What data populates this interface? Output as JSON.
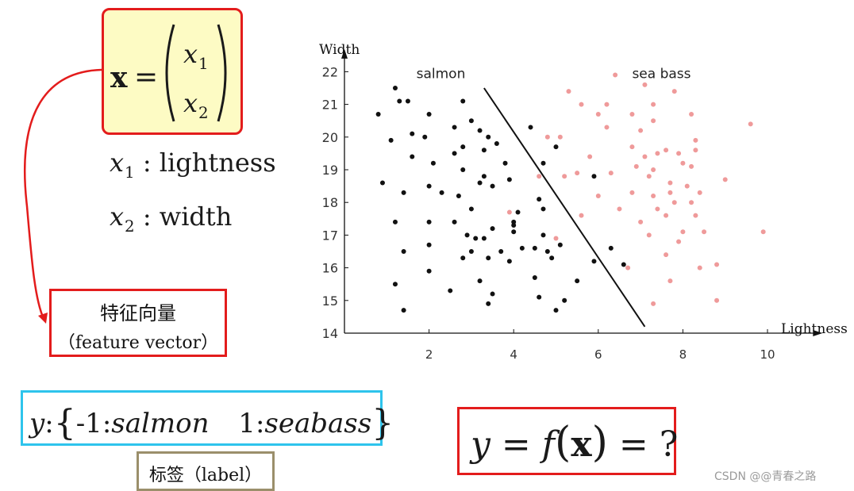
{
  "definition": {
    "vector_lhs": "x",
    "equals": "=",
    "component1_var": "x",
    "component1_sub": "1",
    "component2_var": "x",
    "component2_sub": "2",
    "feature1_var": "x",
    "feature1_sub": "1",
    "feature1_desc": ": lightness",
    "feature2_var": "x",
    "feature2_sub": "2",
    "feature2_desc": ": width"
  },
  "feature_vector_label": {
    "line1": "特征向量",
    "line2": "（feature vector）"
  },
  "label_definition": {
    "y": "y",
    "colon": ":",
    "open_brace": "{",
    "neg_one": "-1",
    "colon2": ":",
    "salmon": "salmon",
    "pos_one": "1",
    "colon3": ":",
    "seabass": "seabass",
    "close_brace": "}"
  },
  "tag_label": "标签（label）",
  "question": {
    "y": "y",
    "eq1": "=",
    "f": "f",
    "lparen": "(",
    "x": "x",
    "rparen": ")",
    "eq2": "=",
    "q": "?"
  },
  "watermark": "CSDN @@青春之路",
  "colors": {
    "red_border": "#e31c1c",
    "cyan_border": "#2ec4ec",
    "tan_border": "#9b8f6b",
    "yellow_fill": "#fdfbc4",
    "salmon_point": "#111111",
    "seabass_point": "#ef9a9a"
  },
  "chart_data": {
    "type": "scatter",
    "title": "",
    "xlabel": "Lightness",
    "ylabel": "Width",
    "xlim": [
      0,
      11
    ],
    "ylim": [
      14,
      22.4
    ],
    "xticks": [
      2,
      4,
      6,
      8,
      10
    ],
    "yticks": [
      14,
      15,
      16,
      17,
      18,
      19,
      20,
      21,
      22
    ],
    "grid": false,
    "annotations": [
      "salmon",
      "sea bass"
    ],
    "decision_boundary": [
      [
        3.3,
        21.5
      ],
      [
        7.1,
        14.2
      ]
    ],
    "series": [
      {
        "name": "salmon",
        "points": [
          [
            1.2,
            21.5
          ],
          [
            1.3,
            21.1
          ],
          [
            1.5,
            21.1
          ],
          [
            2.8,
            21.1
          ],
          [
            0.8,
            20.7
          ],
          [
            2.0,
            20.7
          ],
          [
            3.0,
            20.5
          ],
          [
            2.6,
            20.3
          ],
          [
            3.2,
            20.2
          ],
          [
            1.6,
            20.1
          ],
          [
            1.1,
            19.9
          ],
          [
            1.9,
            20.0
          ],
          [
            3.4,
            20.0
          ],
          [
            2.8,
            19.7
          ],
          [
            2.6,
            19.5
          ],
          [
            3.6,
            19.8
          ],
          [
            3.3,
            19.6
          ],
          [
            1.6,
            19.4
          ],
          [
            2.1,
            19.2
          ],
          [
            2.8,
            19.0
          ],
          [
            3.3,
            18.8
          ],
          [
            3.8,
            19.2
          ],
          [
            3.2,
            18.6
          ],
          [
            2.0,
            18.5
          ],
          [
            1.4,
            18.3
          ],
          [
            2.3,
            18.3
          ],
          [
            3.5,
            18.5
          ],
          [
            3.9,
            18.7
          ],
          [
            2.7,
            18.2
          ],
          [
            0.9,
            18.6
          ],
          [
            3.0,
            17.8
          ],
          [
            4.1,
            17.7
          ],
          [
            4.0,
            17.4
          ],
          [
            1.2,
            17.4
          ],
          [
            2.0,
            17.4
          ],
          [
            2.6,
            17.4
          ],
          [
            3.5,
            17.2
          ],
          [
            4.0,
            17.3
          ],
          [
            2.9,
            17.0
          ],
          [
            3.1,
            16.9
          ],
          [
            3.3,
            16.9
          ],
          [
            4.2,
            16.6
          ],
          [
            4.0,
            17.1
          ],
          [
            2.0,
            16.7
          ],
          [
            3.4,
            16.3
          ],
          [
            3.7,
            16.5
          ],
          [
            3.0,
            16.5
          ],
          [
            2.8,
            16.3
          ],
          [
            3.9,
            16.2
          ],
          [
            4.5,
            16.6
          ],
          [
            1.4,
            16.5
          ],
          [
            2.0,
            15.9
          ],
          [
            3.2,
            15.6
          ],
          [
            4.5,
            15.7
          ],
          [
            1.2,
            15.5
          ],
          [
            2.5,
            15.3
          ],
          [
            3.5,
            15.2
          ],
          [
            3.4,
            14.9
          ],
          [
            4.6,
            15.1
          ],
          [
            5.0,
            14.7
          ],
          [
            5.2,
            15.0
          ],
          [
            1.4,
            14.7
          ],
          [
            4.4,
            20.3
          ],
          [
            5.0,
            19.7
          ],
          [
            4.7,
            19.2
          ],
          [
            4.6,
            18.1
          ],
          [
            4.7,
            17.8
          ],
          [
            4.7,
            17.0
          ],
          [
            4.8,
            16.5
          ],
          [
            4.9,
            16.3
          ],
          [
            5.1,
            16.7
          ],
          [
            5.5,
            15.6
          ],
          [
            5.9,
            16.2
          ],
          [
            5.9,
            18.8
          ],
          [
            6.3,
            16.6
          ],
          [
            6.6,
            16.1
          ]
        ]
      },
      {
        "name": "sea bass",
        "points": [
          [
            6.4,
            21.9
          ],
          [
            7.1,
            21.6
          ],
          [
            5.3,
            21.4
          ],
          [
            7.8,
            21.4
          ],
          [
            5.6,
            21.0
          ],
          [
            6.2,
            21.0
          ],
          [
            7.3,
            21.0
          ],
          [
            6.8,
            20.7
          ],
          [
            6.0,
            20.7
          ],
          [
            8.2,
            20.7
          ],
          [
            7.3,
            20.5
          ],
          [
            6.2,
            20.3
          ],
          [
            7.0,
            20.2
          ],
          [
            9.6,
            20.4
          ],
          [
            4.8,
            20.0
          ],
          [
            5.1,
            20.0
          ],
          [
            8.3,
            19.9
          ],
          [
            6.8,
            19.7
          ],
          [
            7.6,
            19.6
          ],
          [
            8.3,
            19.6
          ],
          [
            7.9,
            19.5
          ],
          [
            5.8,
            19.4
          ],
          [
            7.1,
            19.4
          ],
          [
            7.4,
            19.5
          ],
          [
            8.0,
            19.2
          ],
          [
            6.9,
            19.1
          ],
          [
            7.3,
            19.0
          ],
          [
            8.2,
            19.1
          ],
          [
            5.5,
            18.9
          ],
          [
            6.3,
            18.9
          ],
          [
            7.2,
            18.8
          ],
          [
            7.7,
            18.6
          ],
          [
            8.1,
            18.5
          ],
          [
            9.0,
            18.7
          ],
          [
            4.6,
            18.8
          ],
          [
            5.2,
            18.8
          ],
          [
            6.0,
            18.2
          ],
          [
            6.8,
            18.3
          ],
          [
            7.3,
            18.2
          ],
          [
            7.7,
            18.3
          ],
          [
            8.4,
            18.3
          ],
          [
            6.5,
            17.8
          ],
          [
            7.4,
            17.8
          ],
          [
            7.8,
            18.0
          ],
          [
            8.2,
            18.0
          ],
          [
            5.6,
            17.6
          ],
          [
            7.6,
            17.6
          ],
          [
            8.3,
            17.6
          ],
          [
            3.9,
            17.7
          ],
          [
            7.0,
            17.4
          ],
          [
            8.0,
            17.1
          ],
          [
            8.5,
            17.1
          ],
          [
            9.9,
            17.1
          ],
          [
            7.2,
            17.0
          ],
          [
            7.9,
            16.8
          ],
          [
            5.0,
            16.9
          ],
          [
            7.6,
            16.4
          ],
          [
            8.4,
            16.0
          ],
          [
            8.8,
            16.1
          ],
          [
            6.7,
            16.0
          ],
          [
            7.7,
            15.6
          ],
          [
            8.8,
            15.0
          ],
          [
            7.3,
            14.9
          ]
        ]
      }
    ]
  }
}
